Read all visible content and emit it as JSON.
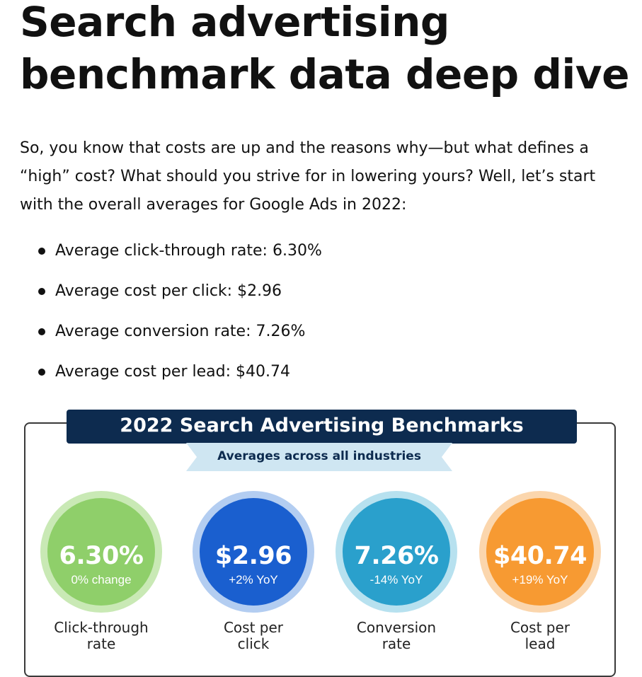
{
  "article": {
    "title_line1": "Search advertising",
    "title_line2": "benchmark data deep dive",
    "intro": "So, you know that costs are up and the reasons why—but what defines a “high” cost? What should you strive for in lowering yours? Well, let’s start with the overall averages for Google Ads in 2022:",
    "bullets": [
      "Average click-through rate: 6.30%",
      "Average cost per click: $2.96",
      "Average conversion rate: 7.26%",
      "Average cost per lead: $40.74"
    ]
  },
  "infographic": {
    "title": "2022 Search Advertising Benchmarks",
    "subtitle": "Averages across all industries",
    "stats": [
      {
        "value": "6.30%",
        "change": "0% change",
        "label_line1": "Click-through",
        "label_line2": "rate",
        "fill": "#8fcf6a",
        "ring": "#c9e9b5"
      },
      {
        "value": "$2.96",
        "change": "+2% YoY",
        "label_line1": "Cost per",
        "label_line2": "click",
        "fill": "#1a5fcf",
        "ring": "#b3cdf1"
      },
      {
        "value": "7.26%",
        "change": "-14% YoY",
        "label_line1": "Conversion",
        "label_line2": "rate",
        "fill": "#2aa0cc",
        "ring": "#b7e1ef"
      },
      {
        "value": "$40.74",
        "change": "+19% YoY",
        "label_line1": "Cost per",
        "label_line2": "lead",
        "fill": "#f79a32",
        "ring": "#fbd6ad"
      }
    ]
  }
}
